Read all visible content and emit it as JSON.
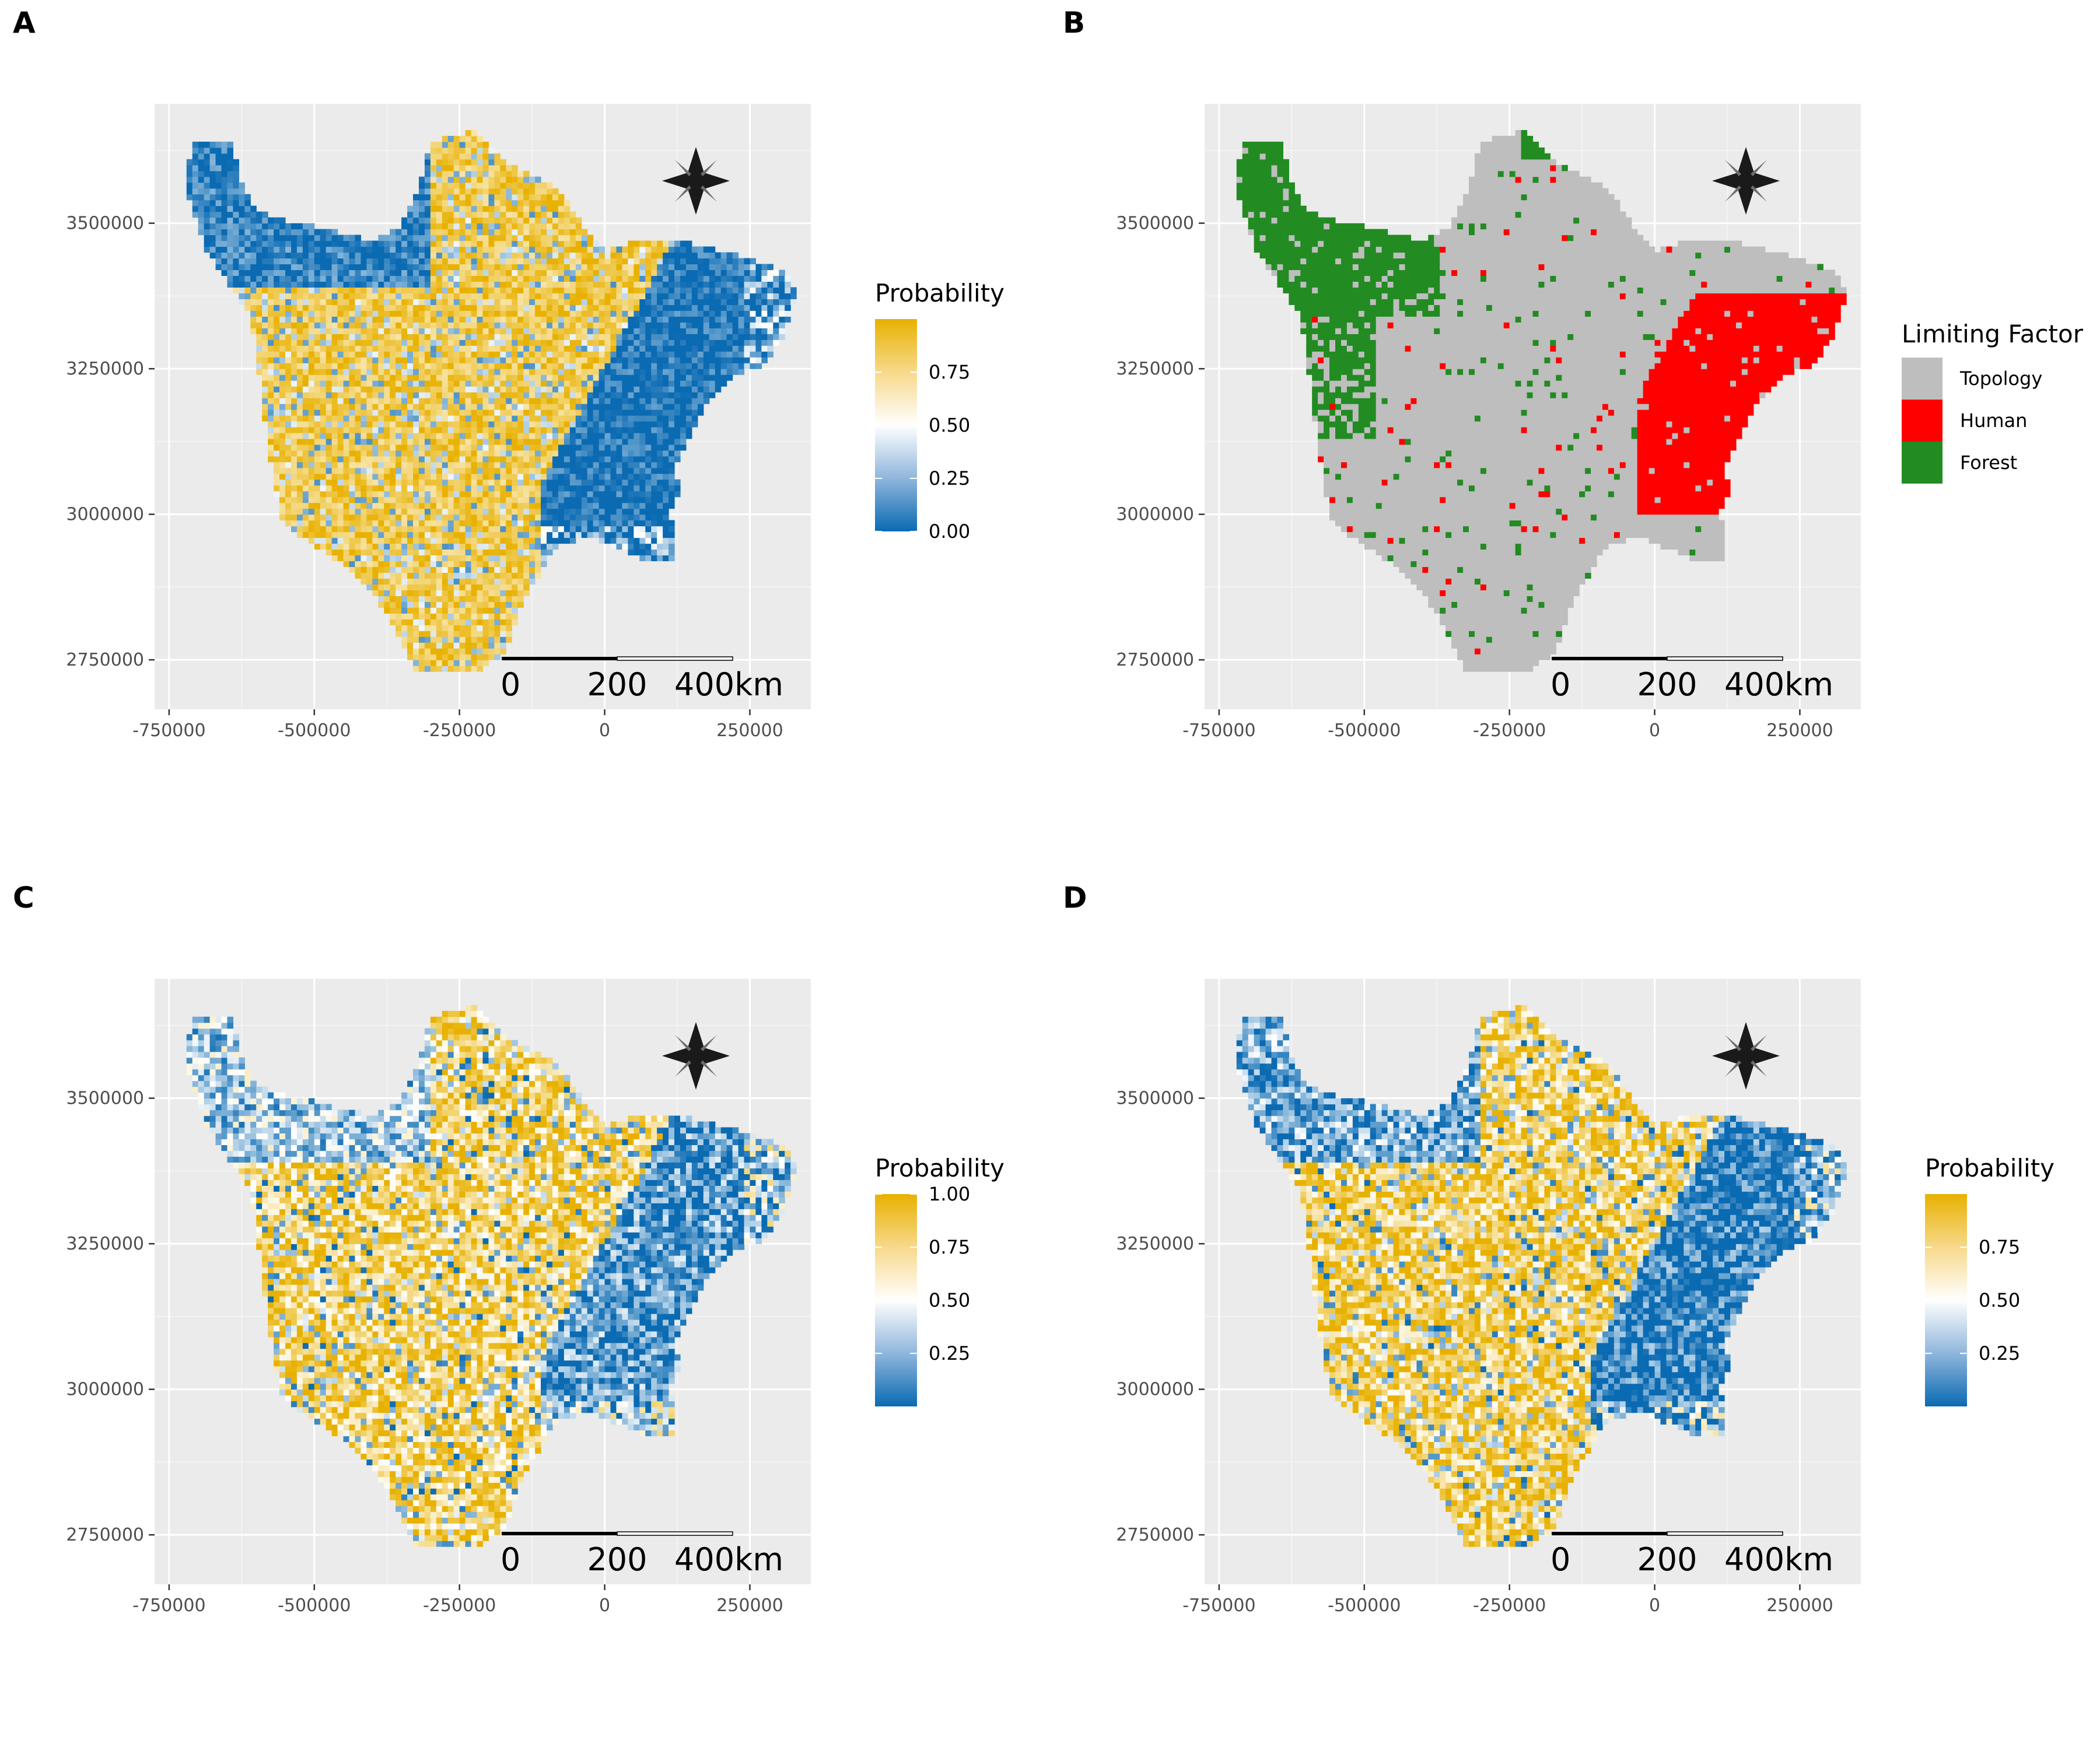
{
  "panels": [
    {
      "letter": "A",
      "legend": {
        "type": "gradient",
        "title": "Probability",
        "ticks": [
          "0.00",
          "0.25",
          "0.50",
          "0.75"
        ],
        "values": [
          0.0,
          0.25,
          0.5,
          0.75
        ],
        "range": [
          0,
          1
        ]
      }
    },
    {
      "letter": "B",
      "legend": {
        "type": "categorical",
        "title": "Limiting Factor",
        "items": [
          {
            "label": "Topology",
            "color": "#bebebe"
          },
          {
            "label": "Human",
            "color": "#ff0000"
          },
          {
            "label": "Forest",
            "color": "#228b22"
          }
        ]
      }
    },
    {
      "letter": "C",
      "legend": {
        "type": "gradient",
        "title": "Probability",
        "ticks": [
          "0.25",
          "0.50",
          "0.75",
          "1.00"
        ],
        "values": [
          0.25,
          0.5,
          0.75,
          1.0
        ],
        "range": [
          0,
          1
        ]
      }
    },
    {
      "letter": "D",
      "legend": {
        "type": "gradient",
        "title": "Probability",
        "ticks": [
          "0.25",
          "0.50",
          "0.75"
        ],
        "values": [
          0.25,
          0.5,
          0.75
        ],
        "range": [
          0,
          1
        ]
      }
    }
  ],
  "axes": {
    "x_ticks": [
      "-750000",
      "-500000",
      "-250000",
      "0",
      "250000"
    ],
    "x_values": [
      -750000,
      -500000,
      -250000,
      0,
      250000
    ],
    "y_ticks": [
      "3500000",
      "3250000",
      "3000000",
      "2750000"
    ],
    "y_values": [
      3500000,
      3250000,
      3000000,
      2750000
    ],
    "xlim": [
      -775000,
      355000
    ],
    "ylim": [
      2665000,
      3705000
    ]
  },
  "scale_bar": {
    "labels": [
      "0",
      "200",
      "400km"
    ]
  },
  "colors": {
    "low": "#0a6ab2",
    "mid": "#ffffff",
    "high": "#e8b100",
    "topology": "#bebebe",
    "human": "#ff0000",
    "forest": "#228b22",
    "panel_bg": "#ebebeb",
    "grid_major": "#ffffff"
  },
  "icons": {
    "north_arrow": "compass-rose-icon"
  }
}
